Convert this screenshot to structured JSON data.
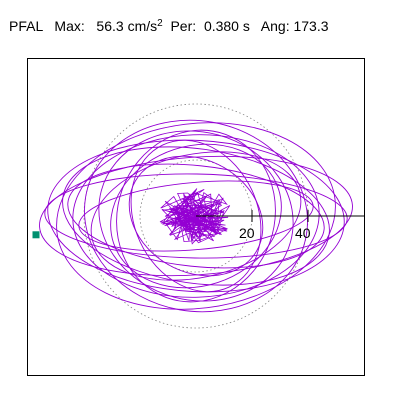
{
  "header": {
    "station": "PFAL",
    "max_label": "Max:",
    "max_value": "56.3",
    "max_unit": "cm/s",
    "max_unit_power": "2",
    "per_label": "Per:",
    "per_value": "0.380 s",
    "ang_label": "Ang:",
    "ang_value": "173.3"
  },
  "colors": {
    "trace": "#9400d3",
    "marker": "#009070",
    "grid": "#808080",
    "axis": "#000000"
  },
  "chart_data": {
    "type": "scatter",
    "title": "",
    "xlabel": "",
    "ylabel": "",
    "x_ticks": [
      "20",
      "40"
    ],
    "range_rings": [
      20,
      40
    ],
    "xlim": [
      -62,
      62
    ],
    "ylim": [
      -62,
      62
    ],
    "peak": {
      "value": 56.3,
      "angle_deg": 173.3
    },
    "orbits": [
      {
        "a": 56,
        "b": 21,
        "rot": -4
      },
      {
        "a": 53,
        "b": 27,
        "rot": 3
      },
      {
        "a": 50,
        "b": 33,
        "rot": -7
      },
      {
        "a": 46,
        "b": 18,
        "rot": 6
      },
      {
        "a": 44,
        "b": 29,
        "rot": -2
      },
      {
        "a": 40,
        "b": 34,
        "rot": 10
      },
      {
        "a": 38,
        "b": 22,
        "rot": -12
      },
      {
        "a": 35,
        "b": 30,
        "rot": 15
      },
      {
        "a": 31,
        "b": 25,
        "rot": -18
      },
      {
        "a": 28,
        "b": 31,
        "rot": 20
      },
      {
        "a": 54,
        "b": 15,
        "rot": 1
      },
      {
        "a": 48,
        "b": 24,
        "rot": 8
      },
      {
        "a": 42,
        "b": 12,
        "rot": -5
      },
      {
        "a": 25,
        "b": 20,
        "rot": 30
      },
      {
        "a": 22,
        "b": 28,
        "rot": -25
      }
    ],
    "core": {
      "count": 160,
      "radius": 12
    }
  }
}
